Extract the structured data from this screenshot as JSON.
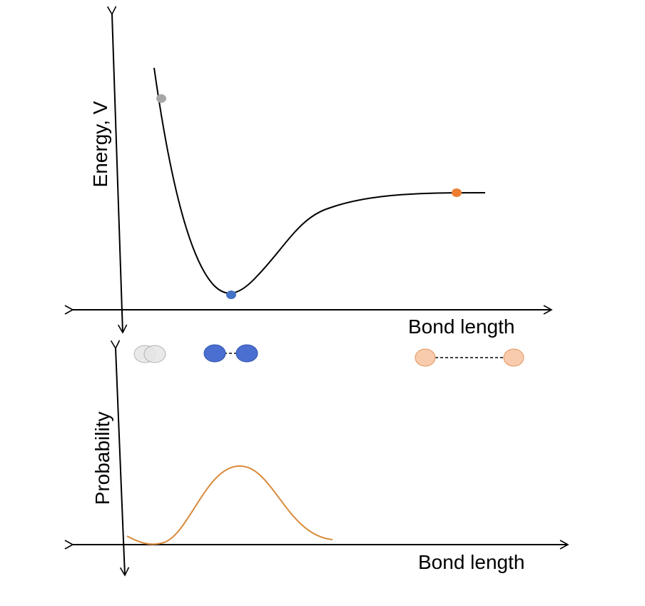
{
  "top_plot": {
    "ylabel": "Energy, V",
    "xlabel": "Bond length",
    "curve_color": "#000000",
    "markers": [
      {
        "name": "compressed-point",
        "color": "#a6a6a6"
      },
      {
        "name": "equilibrium-point",
        "color": "#4472c4"
      },
      {
        "name": "dissociated-point",
        "color": "#ed7d31"
      }
    ]
  },
  "bottom_plot": {
    "ylabel": "Probability",
    "xlabel": "Bond length",
    "curve_color": "#d98a3a"
  },
  "molecules": [
    {
      "name": "compressed-molecule",
      "fill": "#e6e6e6",
      "stroke": "#a6a6a6"
    },
    {
      "name": "equilibrium-molecule",
      "fill": "#4a6fd0",
      "stroke": "#2f52b0"
    },
    {
      "name": "stretched-molecule",
      "fill": "#f8cbad",
      "stroke": "#e0955f"
    }
  ]
}
